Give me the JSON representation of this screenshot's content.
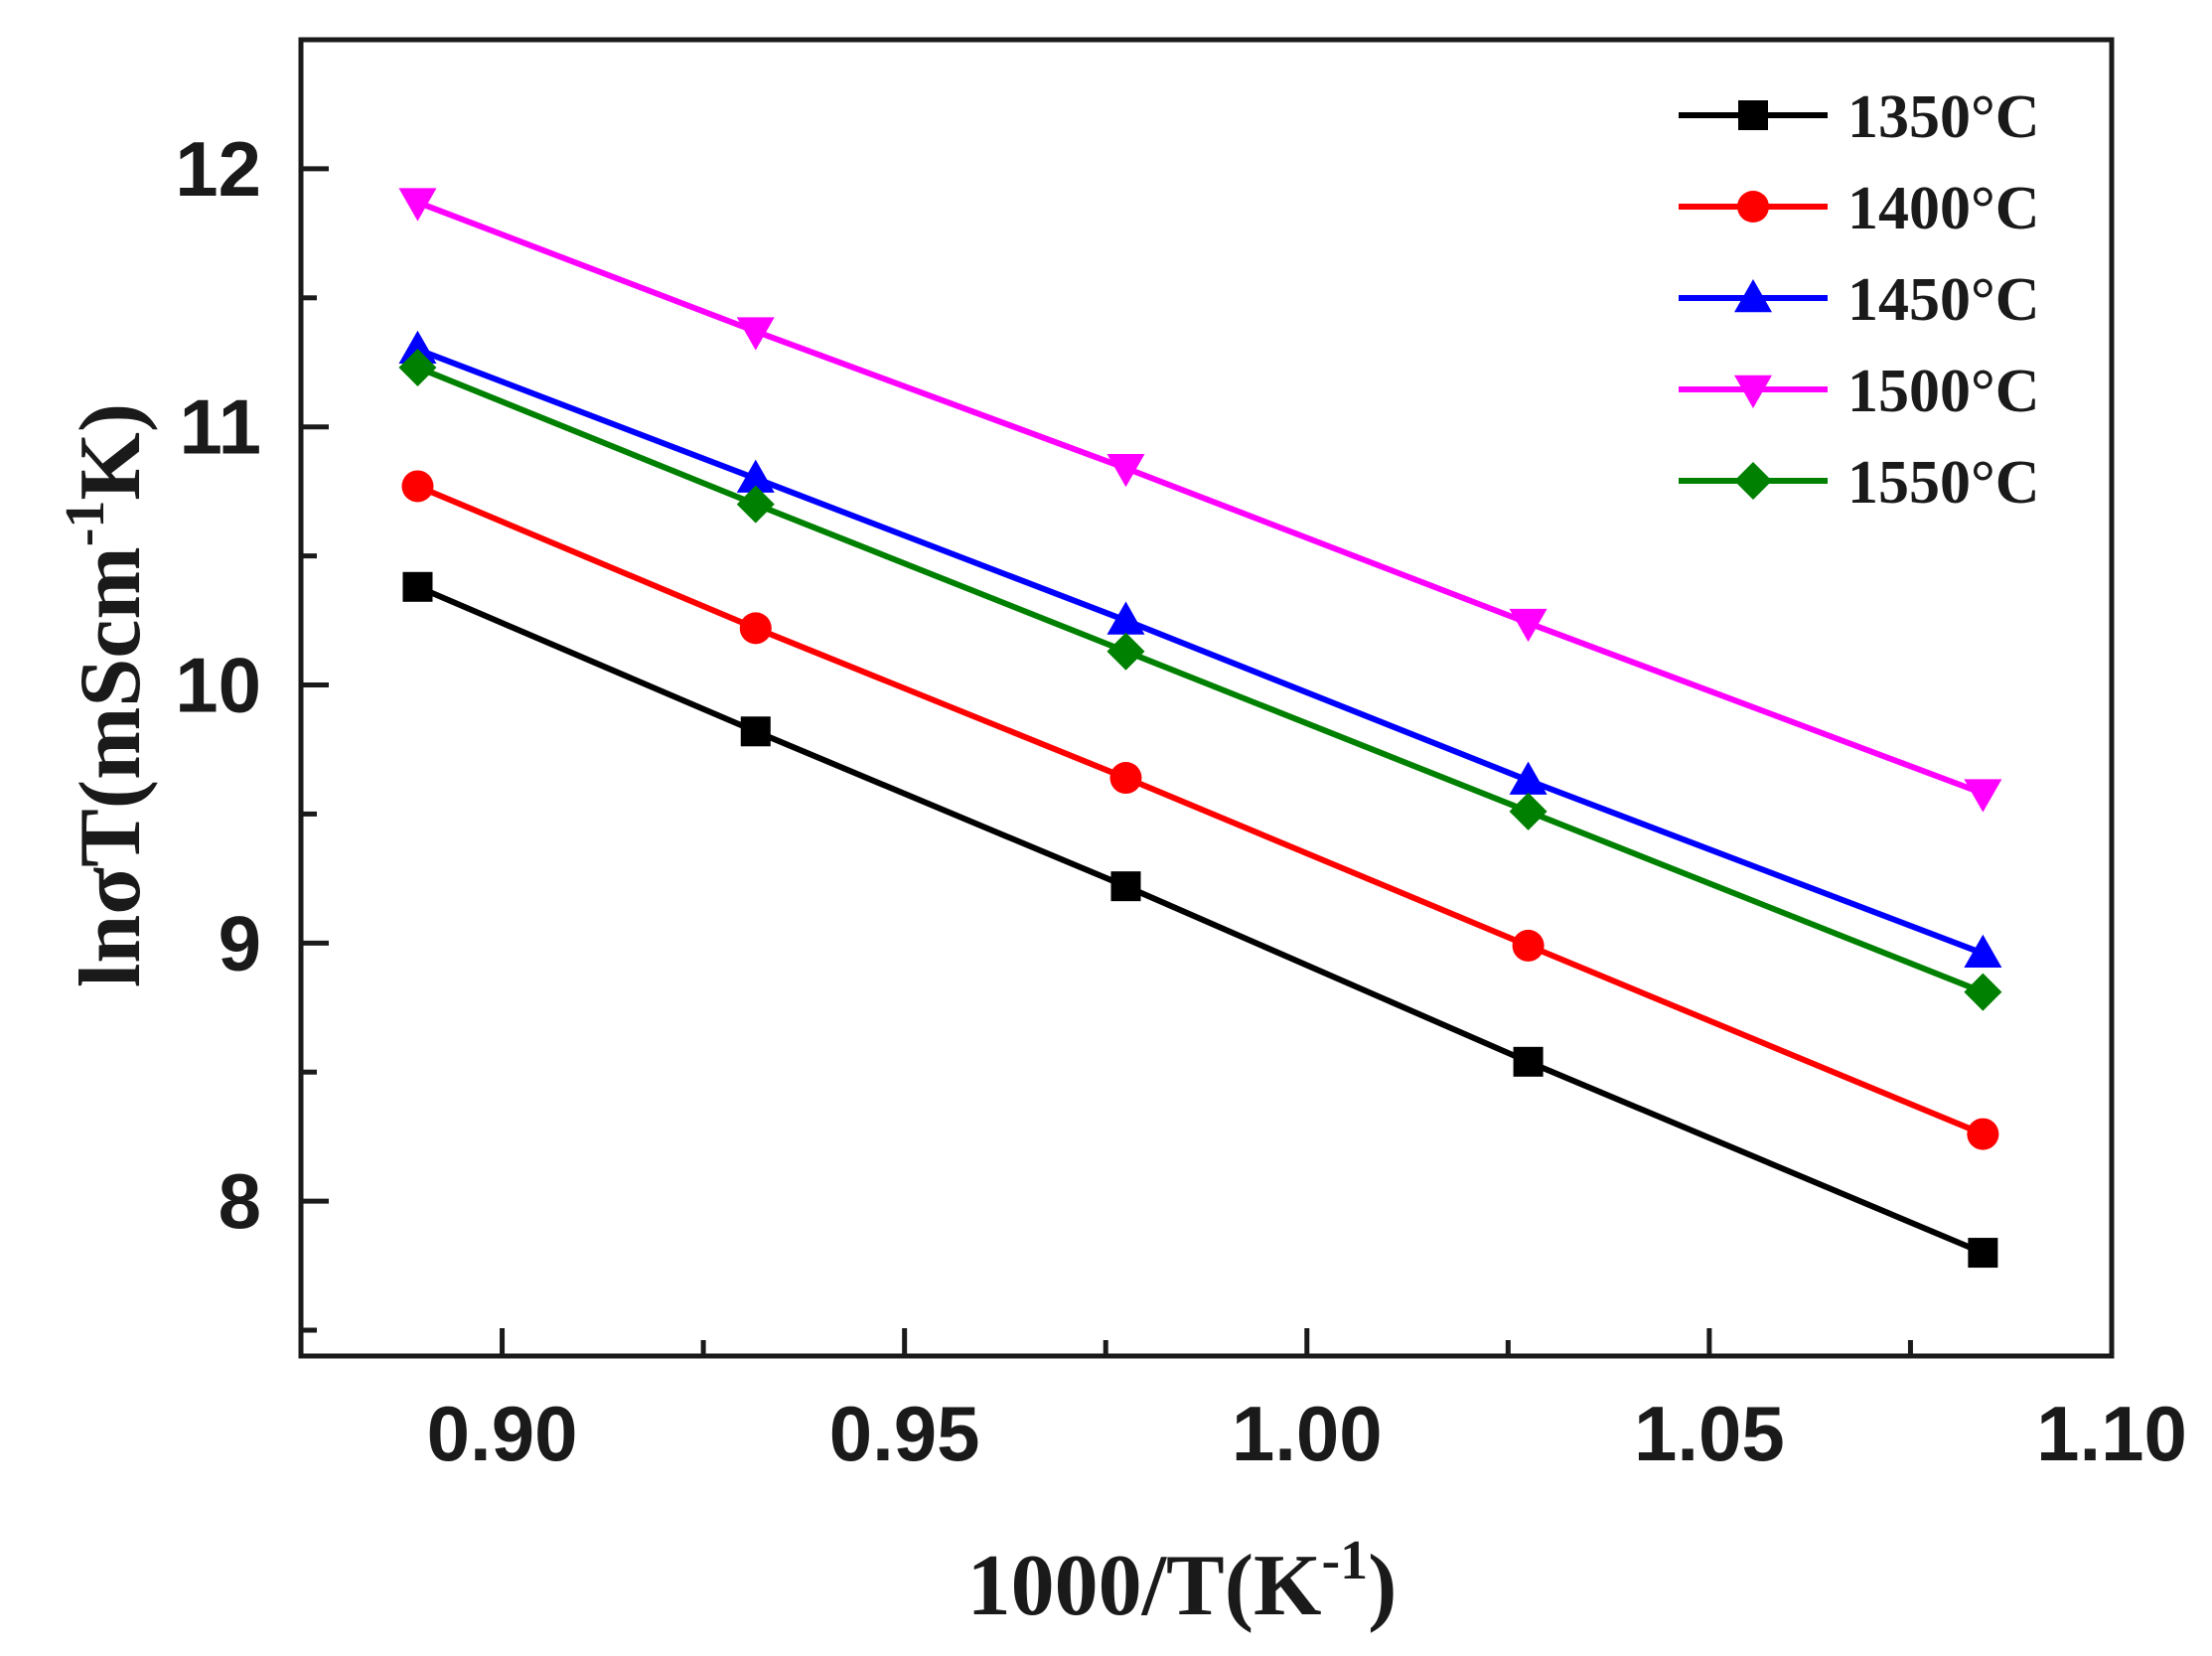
{
  "chart_data": {
    "type": "line",
    "title": "",
    "xlabel_main": "1000/T(K",
    "xlabel_sup": "-1",
    "xlabel_end": ")",
    "ylabel_main": "lnσT(mScm",
    "ylabel_sup": "-1",
    "ylabel_end": "K)",
    "xlim": [
      0.875,
      1.1
    ],
    "ylim": [
      7.4,
      12.5
    ],
    "xticks": [
      0.9,
      0.95,
      1.0,
      1.05,
      1.1
    ],
    "xtick_labels": [
      "0.90",
      "0.95",
      "1.00",
      "1.05",
      "1.10"
    ],
    "yticks": [
      8,
      9,
      10,
      11,
      12
    ],
    "ytick_labels": [
      "8",
      "9",
      "10",
      "11",
      "12"
    ],
    "grid": false,
    "legend_position": "top-right",
    "x": [
      0.8895,
      0.9315,
      0.9775,
      1.0275,
      1.084
    ],
    "series": [
      {
        "name": "1350°C",
        "color": "#000000",
        "marker": "square",
        "values": [
          10.38,
          9.82,
          9.22,
          8.54,
          7.8
        ]
      },
      {
        "name": "1400°C",
        "color": "#ff0000",
        "marker": "circle",
        "values": [
          10.77,
          10.22,
          9.64,
          8.99,
          8.26
        ]
      },
      {
        "name": "1450°C",
        "color": "#0000ff",
        "marker": "triangle-up",
        "values": [
          11.3,
          10.8,
          10.25,
          9.63,
          8.96
        ]
      },
      {
        "name": "1500°C",
        "color": "#ff00ff",
        "marker": "triangle-down",
        "values": [
          11.87,
          11.37,
          10.84,
          10.24,
          9.58
        ]
      },
      {
        "name": "1550°C",
        "color": "#008000",
        "marker": "diamond",
        "values": [
          11.23,
          10.7,
          10.13,
          9.51,
          8.81
        ]
      }
    ]
  }
}
